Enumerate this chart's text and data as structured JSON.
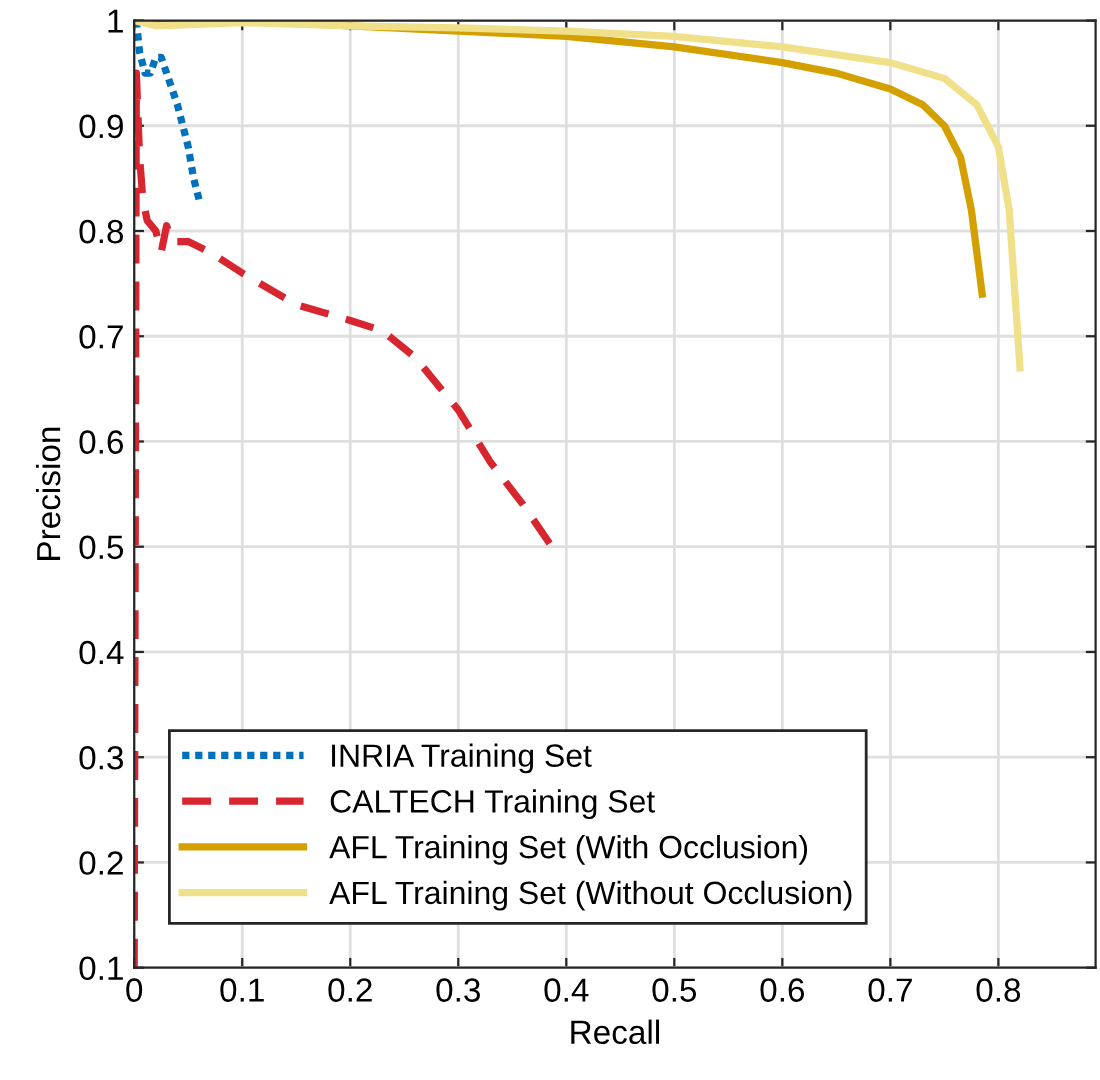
{
  "chart_data": {
    "type": "line",
    "xlabel": "Recall",
    "ylabel": "Precision",
    "xlim": [
      0,
      0.89
    ],
    "ylim": [
      0.1,
      1
    ],
    "xticks": [
      0,
      0.1,
      0.2,
      0.3,
      0.4,
      0.5,
      0.6,
      0.7,
      0.8
    ],
    "yticks": [
      0.1,
      0.2,
      0.3,
      0.4,
      0.5,
      0.6,
      0.7,
      0.8,
      0.9,
      1
    ],
    "grid": true,
    "legend": "bottom left",
    "series": [
      {
        "name": "INRIA Training Set",
        "color": "#0072bd",
        "line_style": "dotted",
        "x": [
          0.002,
          0.005,
          0.01,
          0.015,
          0.02,
          0.025,
          0.03,
          0.04,
          0.05,
          0.055,
          0.06
        ],
        "values": [
          1.0,
          0.97,
          0.95,
          0.95,
          0.965,
          0.965,
          0.95,
          0.92,
          0.88,
          0.85,
          0.83
        ]
      },
      {
        "name": "CALTECH Training Set",
        "color": "#d7262f",
        "line_style": "dashed",
        "x": [
          0,
          0.002,
          0.005,
          0.008,
          0.012,
          0.02,
          0.025,
          0.03,
          0.035,
          0.05,
          0.07,
          0.1,
          0.15,
          0.2,
          0.23,
          0.26,
          0.3,
          0.33,
          0.36,
          0.39
        ],
        "values": [
          0.1,
          0.95,
          0.87,
          0.83,
          0.81,
          0.8,
          0.78,
          0.805,
          0.79,
          0.79,
          0.78,
          0.76,
          0.73,
          0.715,
          0.705,
          0.68,
          0.63,
          0.58,
          0.54,
          0.495
        ]
      },
      {
        "name": "AFL Training Set (With Occlusion)",
        "color": "#d4a000",
        "line_style": "solid",
        "x": [
          0,
          0.1,
          0.2,
          0.3,
          0.4,
          0.5,
          0.6,
          0.65,
          0.7,
          0.73,
          0.75,
          0.765,
          0.775,
          0.785
        ],
        "values": [
          1.0,
          1.0,
          0.995,
          0.99,
          0.985,
          0.975,
          0.96,
          0.95,
          0.935,
          0.92,
          0.9,
          0.87,
          0.82,
          0.74
        ]
      },
      {
        "name": "AFL Training Set (Without Occlusion)",
        "color": "#f0e08a",
        "line_style": "solid",
        "x": [
          0,
          0.02,
          0.1,
          0.2,
          0.3,
          0.4,
          0.5,
          0.6,
          0.7,
          0.75,
          0.78,
          0.8,
          0.81,
          0.82
        ],
        "values": [
          1.0,
          0.995,
          0.998,
          0.995,
          0.993,
          0.99,
          0.985,
          0.975,
          0.96,
          0.945,
          0.92,
          0.88,
          0.82,
          0.67
        ]
      }
    ]
  }
}
